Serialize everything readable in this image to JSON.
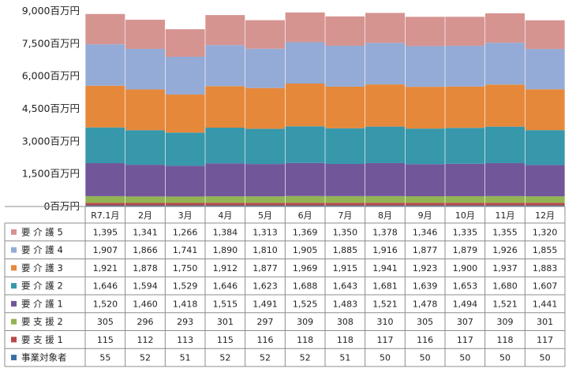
{
  "chart_data": {
    "type": "bar",
    "stacked": true,
    "categories": [
      "R7.1月",
      "2月",
      "3月",
      "4月",
      "5月",
      "6月",
      "7月",
      "8月",
      "9月",
      "10月",
      "11月",
      "12月"
    ],
    "yticks": [
      "9,000百万円",
      "7,500百万円",
      "6,000百万円",
      "4,500百万円",
      "3,000百万円",
      "1,500百万円",
      "0百万円"
    ],
    "ylim": [
      0,
      9000
    ],
    "series": [
      {
        "name": "事業対象者",
        "color": "#3a6fa5",
        "values": [
          55,
          52,
          51,
          52,
          52,
          52,
          51,
          50,
          50,
          50,
          50,
          50
        ],
        "labels": [
          "55",
          "52",
          "51",
          "52",
          "52",
          "52",
          "51",
          "50",
          "50",
          "50",
          "50",
          "50"
        ]
      },
      {
        "name": "要 支 援 1",
        "color": "#b64a48",
        "values": [
          115,
          112,
          113,
          115,
          116,
          118,
          118,
          117,
          116,
          117,
          118,
          117
        ],
        "labels": [
          "115",
          "112",
          "113",
          "115",
          "116",
          "118",
          "118",
          "117",
          "116",
          "117",
          "118",
          "117"
        ]
      },
      {
        "name": "要 支 援 2",
        "color": "#93b453",
        "values": [
          305,
          296,
          293,
          301,
          297,
          309,
          308,
          310,
          305,
          307,
          309,
          301
        ],
        "labels": [
          "305",
          "296",
          "293",
          "301",
          "297",
          "309",
          "308",
          "310",
          "305",
          "307",
          "309",
          "301"
        ]
      },
      {
        "name": "要 介 護 1",
        "color": "#71569a",
        "values": [
          1520,
          1460,
          1418,
          1515,
          1491,
          1525,
          1483,
          1521,
          1478,
          1494,
          1521,
          1441
        ],
        "labels": [
          "1,520",
          "1,460",
          "1,418",
          "1,515",
          "1,491",
          "1,525",
          "1,483",
          "1,521",
          "1,478",
          "1,494",
          "1,521",
          "1,441"
        ]
      },
      {
        "name": "要 介 護 2",
        "color": "#3797ab",
        "values": [
          1646,
          1594,
          1529,
          1646,
          1623,
          1688,
          1643,
          1681,
          1639,
          1653,
          1680,
          1607
        ],
        "labels": [
          "1,646",
          "1,594",
          "1,529",
          "1,646",
          "1,623",
          "1,688",
          "1,643",
          "1,681",
          "1,639",
          "1,653",
          "1,680",
          "1,607"
        ]
      },
      {
        "name": "要 介 護 3",
        "color": "#e6883a",
        "values": [
          1921,
          1878,
          1750,
          1912,
          1877,
          1969,
          1915,
          1941,
          1923,
          1900,
          1937,
          1883
        ],
        "labels": [
          "1,921",
          "1,878",
          "1,750",
          "1,912",
          "1,877",
          "1,969",
          "1,915",
          "1,941",
          "1,923",
          "1,900",
          "1,937",
          "1,883"
        ]
      },
      {
        "name": "要 介 護 4",
        "color": "#93abd6",
        "values": [
          1907,
          1866,
          1741,
          1890,
          1810,
          1905,
          1885,
          1916,
          1877,
          1879,
          1926,
          1855
        ],
        "labels": [
          "1,907",
          "1,866",
          "1,741",
          "1,890",
          "1,810",
          "1,905",
          "1,885",
          "1,916",
          "1,877",
          "1,879",
          "1,926",
          "1,855"
        ]
      },
      {
        "name": "要 介 護 5",
        "color": "#d69491",
        "values": [
          1395,
          1341,
          1266,
          1384,
          1313,
          1369,
          1350,
          1378,
          1346,
          1335,
          1355,
          1320
        ],
        "labels": [
          "1,395",
          "1,341",
          "1,266",
          "1,384",
          "1,313",
          "1,369",
          "1,350",
          "1,378",
          "1,346",
          "1,335",
          "1,355",
          "1,320"
        ]
      }
    ],
    "table_row_order": [
      "要 介 護 5",
      "要 介 護 4",
      "要 介 護 3",
      "要 介 護 2",
      "要 介 護 1",
      "要 支 援 2",
      "要 支 援 1",
      "事業対象者"
    ],
    "legend": "table-left",
    "grid": false
  }
}
